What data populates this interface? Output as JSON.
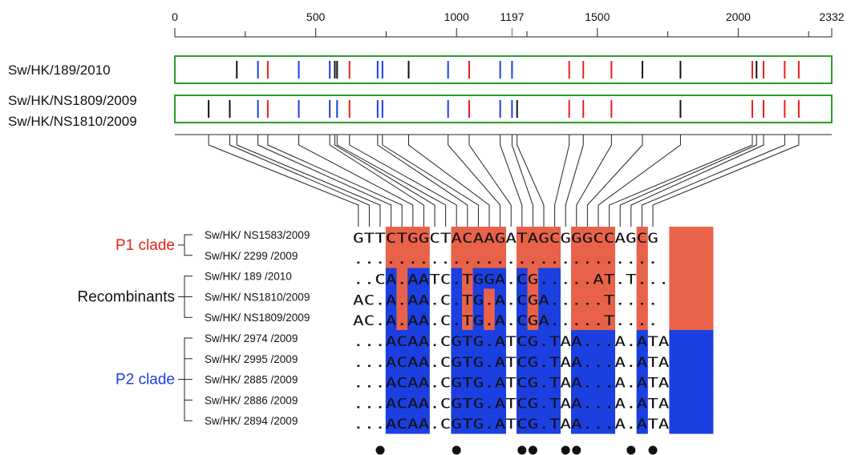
{
  "axis": {
    "ticks": [
      {
        "value": 0,
        "label": "0"
      },
      {
        "value": 500,
        "label": "500"
      },
      {
        "value": 1000,
        "label": "1000"
      },
      {
        "value": 1197,
        "label": "1197"
      },
      {
        "value": 1500,
        "label": "1500"
      },
      {
        "value": 2000,
        "label": "2000"
      },
      {
        "value": 2332,
        "label": "2332"
      }
    ],
    "minor_ticks": [
      250,
      750,
      1250,
      1750,
      2250
    ],
    "max": 2332,
    "highlight_value": 1197,
    "highlight_color": "#2a9d2a"
  },
  "colors": {
    "p1": "#e8624a",
    "p2": "#1b3fe0",
    "p1_text": "#e8201a",
    "p2_text": "#1b3fe0",
    "box_border": "#2a9d2a",
    "black": "#111111"
  },
  "genome_rows": [
    {
      "labels": [
        "Sw/HK/189/2010"
      ],
      "sites": [
        {
          "pos": 220,
          "c": "k"
        },
        {
          "pos": 295,
          "c": "b"
        },
        {
          "pos": 330,
          "c": "r"
        },
        {
          "pos": 440,
          "c": "b"
        },
        {
          "pos": 550,
          "c": "b"
        },
        {
          "pos": 568,
          "c": "k"
        },
        {
          "pos": 576,
          "c": "k"
        },
        {
          "pos": 620,
          "c": "r"
        },
        {
          "pos": 720,
          "c": "b"
        },
        {
          "pos": 737,
          "c": "b"
        },
        {
          "pos": 830,
          "c": "k"
        },
        {
          "pos": 970,
          "c": "b"
        },
        {
          "pos": 1045,
          "c": "r"
        },
        {
          "pos": 1155,
          "c": "b"
        },
        {
          "pos": 1197,
          "c": "b"
        },
        {
          "pos": 1400,
          "c": "r"
        },
        {
          "pos": 1450,
          "c": "r"
        },
        {
          "pos": 1550,
          "c": "r"
        },
        {
          "pos": 1660,
          "c": "k"
        },
        {
          "pos": 1795,
          "c": "k"
        },
        {
          "pos": 2050,
          "c": "r"
        },
        {
          "pos": 2065,
          "c": "k"
        },
        {
          "pos": 2090,
          "c": "r"
        },
        {
          "pos": 2165,
          "c": "r"
        },
        {
          "pos": 2215,
          "c": "r"
        }
      ]
    },
    {
      "labels": [
        "Sw/HK/NS1809/2009",
        "Sw/HK/NS1810/2009"
      ],
      "sites": [
        {
          "pos": 120,
          "c": "k"
        },
        {
          "pos": 195,
          "c": "k"
        },
        {
          "pos": 295,
          "c": "b"
        },
        {
          "pos": 330,
          "c": "r"
        },
        {
          "pos": 440,
          "c": "b"
        },
        {
          "pos": 550,
          "c": "b"
        },
        {
          "pos": 576,
          "c": "b"
        },
        {
          "pos": 620,
          "c": "r"
        },
        {
          "pos": 720,
          "c": "b"
        },
        {
          "pos": 737,
          "c": "b"
        },
        {
          "pos": 970,
          "c": "b"
        },
        {
          "pos": 1045,
          "c": "r"
        },
        {
          "pos": 1155,
          "c": "b"
        },
        {
          "pos": 1197,
          "c": "b"
        },
        {
          "pos": 1215,
          "c": "k"
        },
        {
          "pos": 1400,
          "c": "r"
        },
        {
          "pos": 1450,
          "c": "r"
        },
        {
          "pos": 1550,
          "c": "r"
        },
        {
          "pos": 1795,
          "c": "k"
        },
        {
          "pos": 2050,
          "c": "r"
        },
        {
          "pos": 2090,
          "c": "r"
        },
        {
          "pos": 2165,
          "c": "r"
        },
        {
          "pos": 2215,
          "c": "r"
        }
      ]
    }
  ],
  "connector_sites": [
    120,
    195,
    220,
    295,
    330,
    440,
    550,
    568,
    576,
    620,
    720,
    737,
    830,
    970,
    1045,
    1155,
    1197,
    1215,
    1400,
    1450,
    1550,
    1660,
    1795,
    2050,
    2065,
    2090,
    2165,
    2215
  ],
  "clades": [
    {
      "label": "P1 clade",
      "color_key": "p1_text",
      "rows": [
        0,
        1
      ]
    },
    {
      "label": "Recombinants",
      "color_key": "black",
      "rows": [
        2,
        3,
        4
      ]
    },
    {
      "label": "P2 clade",
      "color_key": "p2_text",
      "rows": [
        5,
        6,
        7,
        8,
        9
      ]
    }
  ],
  "alignment": {
    "strains": [
      "Sw/HK/ NS1583/2009",
      "Sw/HK/ 2299 /2009",
      "Sw/HK/ 189 /2010",
      "Sw/HK/ NS1810/2009",
      "Sw/HK/ NS1809/2009",
      "Sw/HK/ 2974 /2009",
      "Sw/HK/ 2995 /2009",
      "Sw/HK/ 2885 /2009",
      "Sw/HK/ 2886 /2009",
      "Sw/HK/ 2894 /2009"
    ],
    "sequences": [
      "GTTCTGGCTACAAGATAGCGGGCCAGCG",
      "............................",
      "..CA.AATC.TGGA.CG.....AT.T...",
      "AC.A.AA.C.TG.A.CGA.....T....",
      "AC.A.AA.C.TG.A.CGA.....T....",
      "...ACAA.CGTG.ATCG.TAA...A.ATA",
      "...ACAA.CGTG.ATCG.TAA...A.ATA",
      "...ACAA.CGTG.ATCG.TAA...A.ATA",
      "...ACAA.CGTG.ATCG.TAA...A.ATA",
      "...ACAA.CGTG.ATCG.TAA...A.ATA"
    ],
    "color_rows": [
      "...RRRR..RRRRR.RRRR.RRRR..R..RRRR",
      "...RRRR..RRRRR.RRRR.RRRR..R..RRRR",
      "...BRBB..BRBBB.BRBB.RRRR..R..RRRR",
      "...BRBB..BRBRB.BRBB.RRRR..R..RRRR",
      "...BRBB..BRBRB.BRBB.RRRR..R..RRRR",
      "...BBBB..BBBBB.BBBB.BBBB..B..BBBB",
      "...BBBB..BBBBB.BBBB.BBBB..B..BBBB",
      "...BBBB..BBBBB.BBBB.BBBB..B..BBBB",
      "...BBBB..BBBBB.BBBB.BBBB..B..BBBB",
      "...BBBB..BBBBB.BBBB.BBBB..B..BBBB"
    ],
    "dot_columns": [
      2,
      9,
      15,
      16,
      19,
      20,
      25,
      27
    ]
  }
}
